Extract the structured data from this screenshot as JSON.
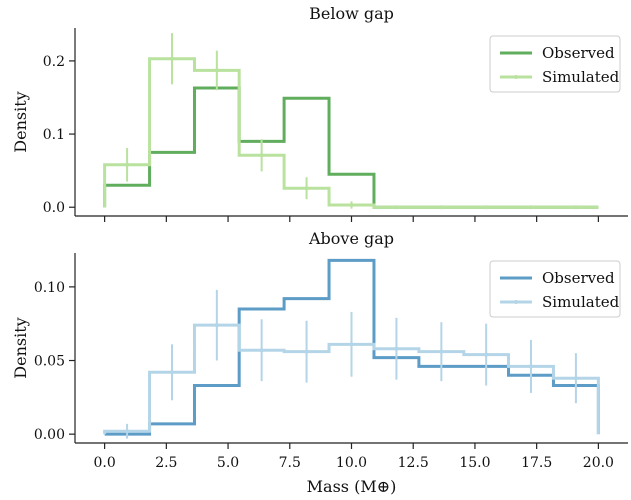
{
  "chart_data": [
    {
      "type": "line",
      "title": "Below gap",
      "xlabel": "",
      "ylabel": "Density",
      "xlim": [
        -1.2,
        21.2
      ],
      "ylim": [
        -0.012,
        0.245
      ],
      "yticks": [
        0.0,
        0.1,
        0.2
      ],
      "ytick_labels": [
        "0.0",
        "0.1",
        "0.2"
      ],
      "xticks": [
        0,
        2.5,
        5,
        7.5,
        10,
        12.5,
        15,
        17.5,
        20
      ],
      "show_xtick_labels": false,
      "legend": {
        "position": "top-right",
        "entries": [
          "Observed",
          "Simulated"
        ]
      },
      "bin_edges": [
        0,
        1.82,
        3.64,
        5.45,
        7.27,
        9.09,
        10.91,
        12.73,
        14.55,
        16.36,
        18.18,
        20
      ],
      "series": [
        {
          "name": "Observed",
          "color": "#61ad5e",
          "values": [
            0.03,
            0.075,
            0.163,
            0.09,
            0.149,
            0.045,
            0.0,
            0.0,
            0.0,
            0.0,
            0.0
          ],
          "errors": null
        },
        {
          "name": "Simulated",
          "color": "#b9e29e",
          "values": [
            0.058,
            0.203,
            0.187,
            0.071,
            0.026,
            0.003,
            0.0,
            0.0,
            0.0,
            0.0,
            0.0
          ],
          "errors": [
            0.023,
            0.035,
            0.027,
            0.022,
            0.015,
            0.005,
            0.0,
            0.0,
            0.0,
            0.0,
            0.0
          ]
        }
      ]
    },
    {
      "type": "line",
      "title": "Above gap",
      "xlabel": "Mass (M⊕)",
      "ylabel": "Density",
      "xlim": [
        -1.2,
        21.2
      ],
      "ylim": [
        -0.006,
        0.123
      ],
      "yticks": [
        0.0,
        0.05,
        0.1
      ],
      "ytick_labels": [
        "0.00",
        "0.05",
        "0.10"
      ],
      "xticks": [
        0,
        2.5,
        5,
        7.5,
        10,
        12.5,
        15,
        17.5,
        20
      ],
      "xtick_labels": [
        "0.0",
        "2.5",
        "5.0",
        "7.5",
        "10.0",
        "12.5",
        "15.0",
        "17.5",
        "20.0"
      ],
      "show_xtick_labels": true,
      "legend": {
        "position": "top-right",
        "entries": [
          "Observed",
          "Simulated"
        ]
      },
      "bin_edges": [
        0,
        1.82,
        3.64,
        5.45,
        7.27,
        9.09,
        10.91,
        12.73,
        14.55,
        16.36,
        18.18,
        20
      ],
      "series": [
        {
          "name": "Observed",
          "color": "#5c9cc6",
          "values": [
            0.0,
            0.007,
            0.033,
            0.085,
            0.092,
            0.118,
            0.052,
            0.046,
            0.046,
            0.04,
            0.033
          ],
          "errors": null
        },
        {
          "name": "Simulated",
          "color": "#b3d5e7",
          "values": [
            0.002,
            0.042,
            0.074,
            0.057,
            0.056,
            0.061,
            0.058,
            0.056,
            0.054,
            0.046,
            0.038
          ],
          "errors": [
            0.005,
            0.019,
            0.024,
            0.021,
            0.021,
            0.022,
            0.021,
            0.02,
            0.021,
            0.018,
            0.017
          ]
        }
      ]
    }
  ]
}
